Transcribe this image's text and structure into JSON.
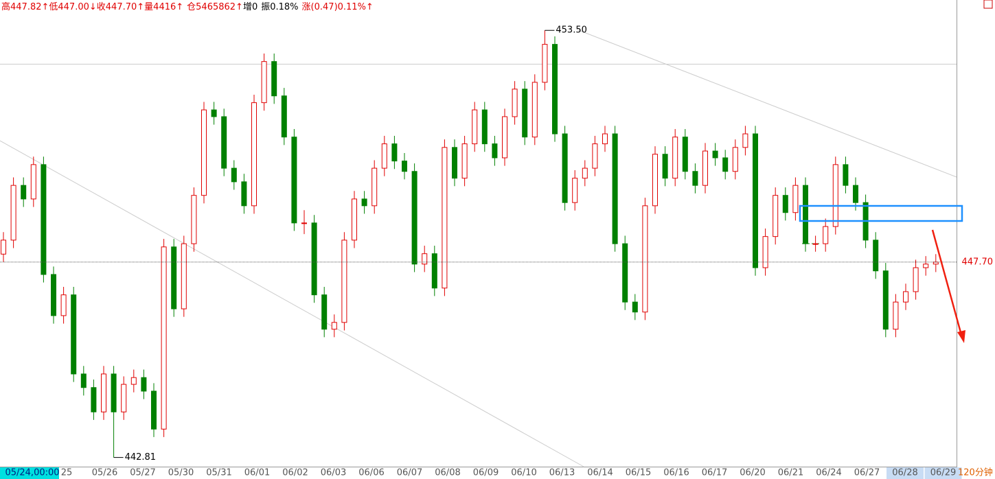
{
  "header": [
    {
      "text": "高447.82↑",
      "color": "#e00000"
    },
    {
      "text": "低447.00↓",
      "color": "#e00000"
    },
    {
      "text": "收447.70↑",
      "color": "#e00000"
    },
    {
      "text": "量4416↑",
      "color": "#e00000"
    },
    {
      "text": "仓5465862↑",
      "color": "#e00000"
    },
    {
      "text": "增0",
      "color": "#000000"
    },
    {
      "text": "振0.18%",
      "color": "#000000"
    },
    {
      "text": "涨(0.47)0.11%↑",
      "color": "#e00000"
    }
  ],
  "chart_data": {
    "type": "candlestick",
    "ylim": [
      442.58,
      454.26
    ],
    "up_color": "#e00000",
    "down_color": "#008000",
    "candles": [
      [
        447.9,
        448.45,
        447.7,
        448.25
      ],
      [
        448.25,
        449.82,
        448.05,
        449.62
      ],
      [
        449.62,
        449.82,
        449.08,
        449.28
      ],
      [
        449.28,
        450.34,
        449.08,
        450.14
      ],
      [
        450.14,
        450.34,
        447.19,
        447.39
      ],
      [
        447.39,
        447.59,
        446.16,
        446.36
      ],
      [
        446.36,
        447.08,
        446.16,
        446.88
      ],
      [
        446.88,
        447.08,
        444.7,
        444.9
      ],
      [
        444.9,
        445.1,
        444.36,
        444.56
      ],
      [
        444.56,
        444.76,
        443.75,
        443.95
      ],
      [
        443.95,
        445.1,
        443.75,
        444.9
      ],
      [
        444.9,
        445.1,
        442.81,
        443.95
      ],
      [
        443.95,
        444.84,
        443.75,
        444.64
      ],
      [
        444.64,
        445.01,
        444.44,
        444.81
      ],
      [
        444.81,
        445.01,
        444.27,
        444.47
      ],
      [
        444.47,
        444.67,
        443.32,
        443.52
      ],
      [
        443.52,
        448.28,
        443.32,
        448.08
      ],
      [
        448.08,
        448.28,
        446.33,
        446.53
      ],
      [
        446.53,
        448.36,
        446.33,
        448.16
      ],
      [
        448.16,
        449.57,
        447.96,
        449.37
      ],
      [
        449.37,
        451.71,
        449.17,
        451.51
      ],
      [
        451.51,
        451.71,
        451.14,
        451.34
      ],
      [
        451.34,
        451.54,
        449.85,
        450.05
      ],
      [
        450.05,
        450.25,
        449.51,
        449.71
      ],
      [
        449.71,
        449.91,
        448.91,
        449.11
      ],
      [
        449.11,
        451.89,
        448.91,
        451.69
      ],
      [
        451.69,
        452.92,
        451.49,
        452.72
      ],
      [
        452.72,
        452.92,
        451.66,
        451.86
      ],
      [
        451.86,
        452.06,
        450.63,
        450.83
      ],
      [
        450.83,
        451.03,
        448.48,
        448.68
      ],
      [
        448.68,
        449.0,
        448.4,
        448.68
      ],
      [
        448.68,
        448.88,
        446.68,
        446.88
      ],
      [
        446.88,
        447.08,
        445.82,
        446.02
      ],
      [
        446.02,
        446.39,
        445.82,
        446.19
      ],
      [
        446.19,
        448.45,
        445.99,
        448.25
      ],
      [
        448.25,
        449.48,
        448.05,
        449.28
      ],
      [
        449.28,
        449.48,
        448.91,
        449.11
      ],
      [
        449.11,
        450.25,
        448.91,
        450.05
      ],
      [
        450.05,
        450.86,
        449.85,
        450.66
      ],
      [
        450.66,
        450.86,
        450.03,
        450.23
      ],
      [
        450.23,
        450.43,
        449.77,
        449.97
      ],
      [
        449.97,
        450.17,
        447.45,
        447.65
      ],
      [
        447.65,
        448.11,
        447.45,
        447.91
      ],
      [
        447.91,
        448.11,
        446.85,
        447.05
      ],
      [
        447.05,
        450.77,
        446.85,
        450.57
      ],
      [
        450.57,
        450.77,
        449.6,
        449.8
      ],
      [
        449.8,
        450.86,
        449.6,
        450.66
      ],
      [
        450.66,
        451.71,
        450.46,
        451.51
      ],
      [
        451.51,
        451.71,
        450.46,
        450.66
      ],
      [
        450.66,
        450.86,
        450.11,
        450.31
      ],
      [
        450.31,
        451.54,
        450.11,
        451.34
      ],
      [
        451.34,
        452.23,
        451.14,
        452.03
      ],
      [
        452.03,
        452.23,
        450.63,
        450.83
      ],
      [
        450.83,
        452.4,
        450.63,
        452.2
      ],
      [
        452.2,
        453.5,
        452.0,
        453.15
      ],
      [
        453.15,
        453.35,
        450.71,
        450.91
      ],
      [
        450.91,
        451.11,
        448.99,
        449.19
      ],
      [
        449.19,
        450.0,
        448.99,
        449.8
      ],
      [
        449.8,
        450.25,
        449.6,
        450.05
      ],
      [
        450.05,
        450.86,
        449.85,
        450.66
      ],
      [
        450.66,
        451.11,
        450.46,
        450.91
      ],
      [
        450.91,
        451.11,
        447.96,
        448.16
      ],
      [
        448.16,
        448.36,
        446.5,
        446.7
      ],
      [
        446.7,
        446.9,
        446.25,
        446.45
      ],
      [
        446.45,
        449.31,
        446.25,
        449.11
      ],
      [
        449.11,
        450.6,
        448.91,
        450.4
      ],
      [
        450.4,
        450.6,
        449.6,
        449.8
      ],
      [
        449.8,
        451.03,
        449.6,
        450.83
      ],
      [
        450.83,
        451.03,
        449.77,
        449.97
      ],
      [
        449.97,
        450.17,
        449.42,
        449.62
      ],
      [
        449.62,
        450.68,
        449.42,
        450.48
      ],
      [
        450.48,
        450.68,
        450.11,
        450.31
      ],
      [
        450.31,
        450.51,
        449.77,
        449.97
      ],
      [
        449.97,
        450.77,
        449.77,
        450.57
      ],
      [
        450.57,
        451.11,
        450.37,
        450.91
      ],
      [
        450.91,
        451.11,
        447.36,
        447.56
      ],
      [
        447.56,
        448.54,
        447.36,
        448.34
      ],
      [
        448.34,
        449.57,
        448.14,
        449.37
      ],
      [
        449.37,
        449.57,
        448.74,
        448.94
      ],
      [
        448.94,
        449.82,
        448.74,
        449.62
      ],
      [
        449.62,
        449.82,
        447.96,
        448.16
      ],
      [
        448.16,
        448.36,
        447.96,
        448.16
      ],
      [
        448.16,
        448.79,
        447.96,
        448.59
      ],
      [
        448.59,
        450.34,
        448.39,
        450.14
      ],
      [
        450.14,
        450.34,
        449.42,
        449.62
      ],
      [
        449.62,
        449.82,
        448.99,
        449.19
      ],
      [
        449.19,
        449.39,
        448.05,
        448.25
      ],
      [
        448.25,
        448.45,
        447.28,
        447.48
      ],
      [
        447.48,
        447.68,
        445.82,
        446.02
      ],
      [
        446.02,
        446.9,
        445.82,
        446.7
      ],
      [
        446.7,
        447.16,
        446.5,
        446.96
      ],
      [
        446.96,
        447.76,
        446.76,
        447.56
      ],
      [
        447.56,
        447.85,
        447.36,
        447.65
      ],
      [
        447.65,
        447.9,
        447.45,
        447.7
      ]
    ],
    "x_labels": [
      "05/24,00:00",
      "25",
      "05/26",
      "05/27",
      "05/30",
      "05/31",
      "06/01",
      "06/02",
      "06/03",
      "06/06",
      "06/07",
      "06/08",
      "06/09",
      "06/10",
      "06/13",
      "06/14",
      "06/15",
      "06/16",
      "06/17",
      "06/20",
      "06/21",
      "06/24",
      "06/27",
      "06/28",
      "06/29"
    ],
    "high_label": {
      "value": 453.5,
      "label": "453.50"
    },
    "low_label": {
      "value": 442.81,
      "label": "442.81"
    },
    "last_price": {
      "value": 447.7,
      "label": "447.70"
    },
    "period": "120分钟"
  }
}
